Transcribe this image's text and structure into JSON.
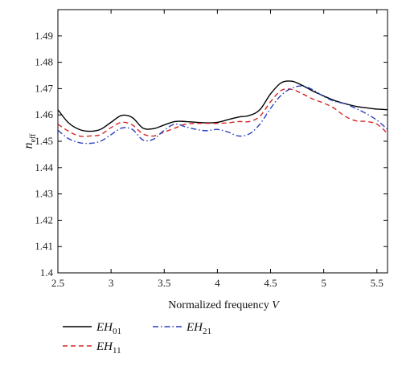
{
  "chart_data": {
    "type": "line",
    "title": "",
    "xlabel": "Normalized frequency V",
    "xlabel_main": "Normalized frequency ",
    "xlabel_var": "V",
    "ylabel": "n_eff",
    "ylabel_main": "n",
    "ylabel_sub": "eff",
    "xlim": [
      2.5,
      5.6
    ],
    "ylim": [
      1.4,
      1.5
    ],
    "xticks": [
      2.5,
      3,
      3.5,
      4,
      4.5,
      5,
      5.5
    ],
    "xtick_labels": [
      "2.5",
      "3",
      "3.5",
      "4",
      "4.5",
      "5",
      "5.5"
    ],
    "yticks": [
      1.4,
      1.41,
      1.42,
      1.43,
      1.44,
      1.45,
      1.46,
      1.47,
      1.48,
      1.49
    ],
    "ytick_labels": [
      "1.4",
      "1.41",
      "1.42",
      "1.43",
      "1.44",
      "1.45",
      "1.46",
      "1.47",
      "1.48",
      "1.49"
    ],
    "grid": false,
    "legend_position": "bottom",
    "series": [
      {
        "name": "EH01",
        "label_main": "EH",
        "label_sub": "01",
        "color": "#000000",
        "dash": "solid",
        "x": [
          2.5,
          2.6,
          2.7,
          2.8,
          2.9,
          3.0,
          3.1,
          3.2,
          3.3,
          3.4,
          3.5,
          3.6,
          3.7,
          3.8,
          3.9,
          4.0,
          4.1,
          4.2,
          4.3,
          4.4,
          4.5,
          4.6,
          4.7,
          4.8,
          4.9,
          5.0,
          5.1,
          5.2,
          5.3,
          5.4,
          5.5,
          5.6
        ],
        "y": [
          1.462,
          1.457,
          1.4545,
          1.4538,
          1.4545,
          1.4572,
          1.4598,
          1.459,
          1.455,
          1.4548,
          1.4562,
          1.4575,
          1.4575,
          1.4572,
          1.457,
          1.4572,
          1.4582,
          1.4592,
          1.4598,
          1.462,
          1.468,
          1.4722,
          1.4728,
          1.4712,
          1.469,
          1.4672,
          1.4655,
          1.4643,
          1.4633,
          1.4627,
          1.4622,
          1.462
        ]
      },
      {
        "name": "EH11",
        "label_main": "EH",
        "label_sub": "11",
        "color": "#d62424",
        "dash": "dashed",
        "x": [
          2.5,
          2.6,
          2.7,
          2.8,
          2.9,
          3.0,
          3.1,
          3.2,
          3.3,
          3.4,
          3.5,
          3.6,
          3.7,
          3.8,
          3.9,
          4.0,
          4.1,
          4.2,
          4.3,
          4.4,
          4.5,
          4.6,
          4.7,
          4.8,
          4.9,
          5.0,
          5.1,
          5.2,
          5.3,
          5.4,
          5.5,
          5.6
        ],
        "y": [
          1.4565,
          1.4538,
          1.452,
          1.452,
          1.4525,
          1.4552,
          1.4572,
          1.4562,
          1.4528,
          1.452,
          1.4535,
          1.455,
          1.4565,
          1.4568,
          1.4568,
          1.4568,
          1.457,
          1.4575,
          1.4575,
          1.4595,
          1.465,
          1.4693,
          1.4697,
          1.468,
          1.466,
          1.4645,
          1.4625,
          1.4595,
          1.4578,
          1.4575,
          1.4565,
          1.453
        ]
      },
      {
        "name": "EH21",
        "label_main": "EH",
        "label_sub": "21",
        "color": "#2b3fbf",
        "dash": "dashdot",
        "x": [
          2.5,
          2.6,
          2.7,
          2.8,
          2.9,
          3.0,
          3.1,
          3.2,
          3.3,
          3.4,
          3.5,
          3.6,
          3.7,
          3.8,
          3.9,
          4.0,
          4.1,
          4.2,
          4.3,
          4.4,
          4.5,
          4.6,
          4.7,
          4.8,
          4.9,
          5.0,
          5.1,
          5.2,
          5.3,
          5.4,
          5.5,
          5.6
        ],
        "y": [
          1.4542,
          1.451,
          1.4495,
          1.4492,
          1.45,
          1.4525,
          1.455,
          1.4545,
          1.4505,
          1.4508,
          1.4542,
          1.4565,
          1.4555,
          1.4545,
          1.454,
          1.4545,
          1.4535,
          1.452,
          1.4528,
          1.4565,
          1.4625,
          1.4675,
          1.4702,
          1.471,
          1.4695,
          1.467,
          1.4652,
          1.4642,
          1.4625,
          1.4605,
          1.458,
          1.4545
        ]
      }
    ]
  }
}
